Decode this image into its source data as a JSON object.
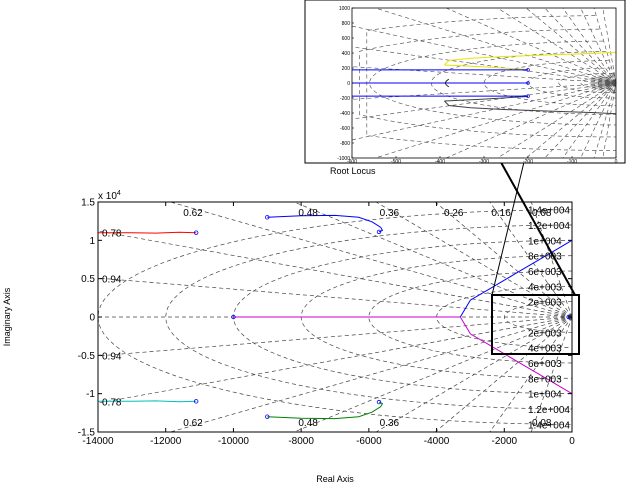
{
  "chart_data": {
    "type": "line",
    "title": "Root Locus",
    "xlabel": "Real Axis",
    "ylabel": "Imaginary Axis",
    "y_exponent": "x 10",
    "y_exponent_power": "4",
    "xlim": [
      -14000,
      0
    ],
    "ylim": [
      -15000,
      15000
    ],
    "x_ticks": [
      "-14000",
      "-12000",
      "-10000",
      "-8000",
      "-6000",
      "-4000",
      "-2000",
      "0"
    ],
    "y_ticks": [
      "-1.5",
      "-1",
      "-0.5",
      "0",
      "0.5",
      "1",
      "1.5"
    ],
    "damping_labels": [
      "0.94",
      "0.78",
      "0.62",
      "0.48",
      "0.36",
      "0.26",
      "0.16",
      "0.08"
    ],
    "frequency_labels": [
      "1.4e+004",
      "1.2e+004",
      "1e+004",
      "8e+003",
      "6e+003",
      "4e+003",
      "2e+003"
    ],
    "grid": true,
    "series": [
      {
        "color": "#ff0000",
        "x": [
          -14000,
          -13000,
          -12300,
          -11600,
          -11100
        ],
        "y": [
          11000,
          11000,
          10950,
          11050,
          11000
        ]
      },
      {
        "color": "#00bfbf",
        "x": [
          -14000,
          -13000,
          -12300,
          -11600,
          -11100
        ],
        "y": [
          -11000,
          -11000,
          -10950,
          -11050,
          -11000
        ]
      },
      {
        "color": "#0000ff",
        "x": [
          -9000,
          -8000,
          -7000,
          -6300,
          -5900,
          -5650,
          -5600,
          -5700
        ],
        "y": [
          13000,
          13200,
          13250,
          13000,
          12400,
          11700,
          11300,
          11100
        ]
      },
      {
        "color": "#008000",
        "x": [
          -9000,
          -8000,
          -7000,
          -6300,
          -5900,
          -5650,
          -5600,
          -5700
        ],
        "y": [
          -13000,
          -13200,
          -13250,
          -13000,
          -12400,
          -11700,
          -11300,
          -11100
        ]
      },
      {
        "color": "#cc00cc",
        "x": [
          -10000,
          -7000,
          -4500,
          -3300
        ],
        "y": [
          0,
          0,
          0,
          0
        ]
      },
      {
        "color": "#0000ff",
        "x": [
          -3300,
          -3000,
          -2500,
          -2000,
          -1500,
          -1000,
          -500,
          0
        ],
        "y": [
          0,
          2200,
          3500,
          4800,
          6100,
          7400,
          8700,
          10000
        ]
      },
      {
        "color": "#cc00cc",
        "x": [
          -3300,
          -3000,
          -2500,
          -2000,
          -1500,
          -1000,
          -500,
          0
        ],
        "y": [
          0,
          -2200,
          -3500,
          -4800,
          -6100,
          -7400,
          -8700,
          -10000
        ]
      }
    ],
    "inset": {
      "xlim": [
        -600,
        0
      ],
      "ylim": [
        -1000,
        1000
      ],
      "x_ticks": [
        "-600",
        "-500",
        "-400",
        "-300",
        "-200",
        "-100",
        "0"
      ],
      "y_ticks": [
        "-1000",
        "-800",
        "-600",
        "-400",
        "-200",
        "0",
        "200",
        "400",
        "600",
        "800",
        "1000"
      ],
      "series": [
        {
          "color": "#e6e600",
          "x": [
            -390,
            -380,
            -330,
            -250,
            -150,
            -50,
            0
          ],
          "y": [
            240,
            300,
            330,
            355,
            375,
            395,
            410
          ]
        },
        {
          "color": "#e6e600",
          "x": [
            -390,
            -300,
            -200
          ],
          "y": [
            240,
            215,
            180
          ]
        },
        {
          "color": "#404040",
          "x": [
            -390,
            -380,
            -330,
            -250,
            -150,
            -50,
            0
          ],
          "y": [
            -240,
            -300,
            -330,
            -355,
            -375,
            -395,
            -410
          ]
        },
        {
          "color": "#404040",
          "x": [
            -390,
            -300,
            -200
          ],
          "y": [
            -240,
            -215,
            -180
          ]
        },
        {
          "color": "#0000ff",
          "x": [
            -600,
            -400,
            -200
          ],
          "y": [
            0,
            0,
            0
          ]
        },
        {
          "color": "#0000ff",
          "x": [
            -600,
            -400,
            -200
          ],
          "y": [
            175,
            175,
            175
          ]
        },
        {
          "color": "#0000ff",
          "x": [
            -600,
            -400,
            -200
          ],
          "y": [
            -175,
            -175,
            -175
          ]
        }
      ]
    }
  }
}
